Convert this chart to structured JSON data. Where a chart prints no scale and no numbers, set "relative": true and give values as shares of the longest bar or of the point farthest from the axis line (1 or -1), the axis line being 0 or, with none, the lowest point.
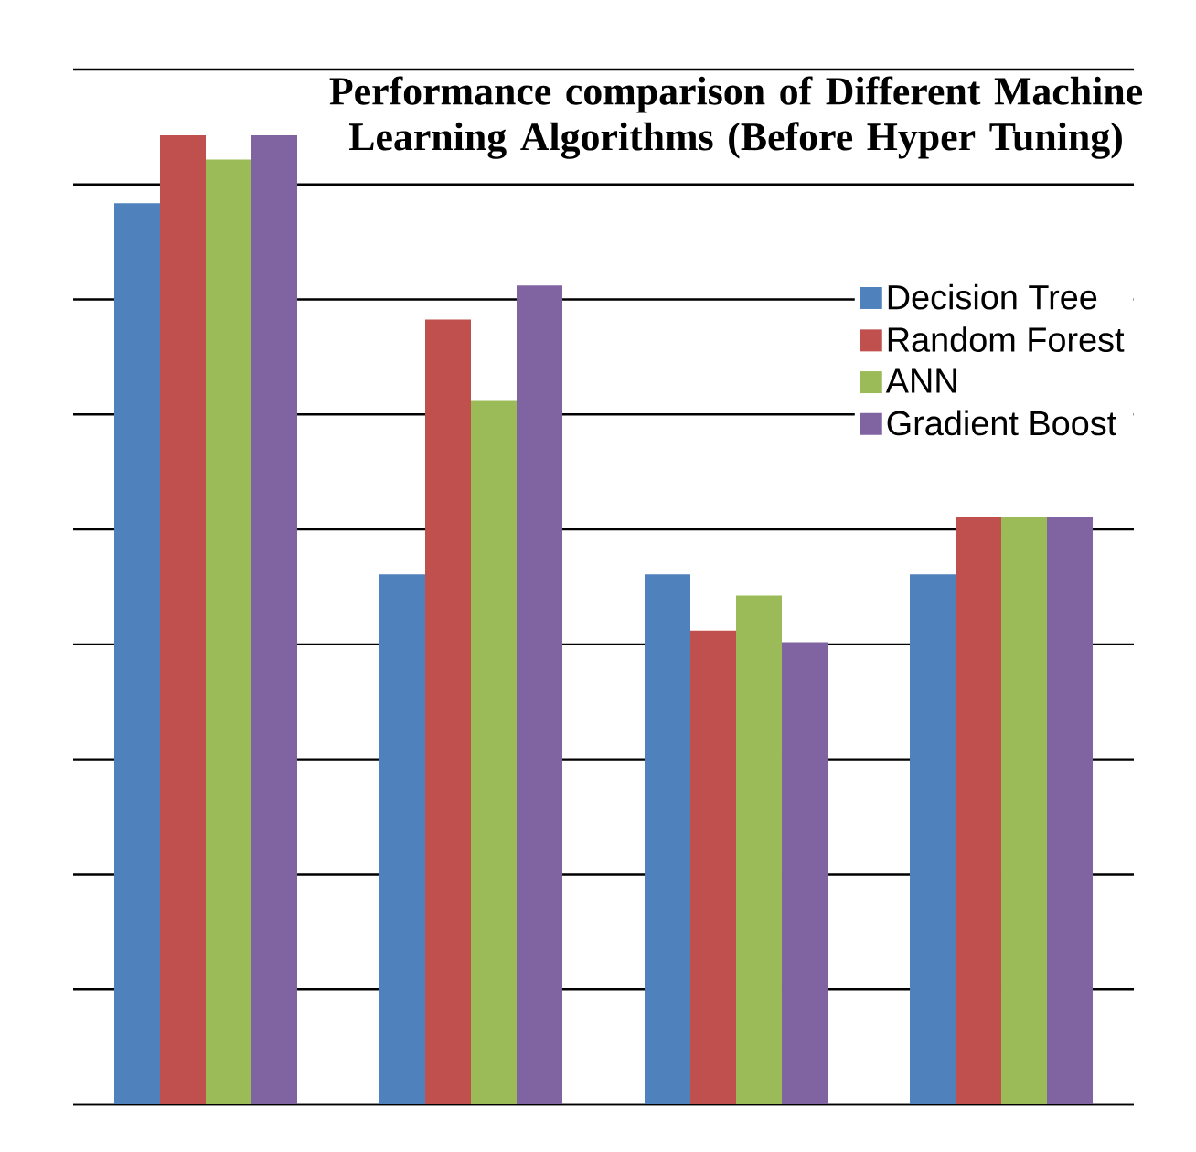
{
  "chart_data": {
    "type": "bar",
    "title": "Performance comparison of Different Machine Learning Algorithms (Before Hyper Tuning)",
    "relative": true,
    "categories": [
      null,
      null,
      null,
      null
    ],
    "grid": "y",
    "legend": "right",
    "series": [
      {
        "name": "Decision Tree",
        "color": "#4f81bd",
        "values": [
          0.93,
          0.547,
          0.547,
          0.547
        ]
      },
      {
        "name": "Random Forest",
        "color": "#c0504d",
        "values": [
          1,
          0.81,
          0.489,
          0.606
        ]
      },
      {
        "name": "ANN",
        "color": "#9bbb59",
        "values": [
          0.975,
          0.726,
          0.525,
          0.606
        ]
      },
      {
        "name": "Gradient Boost",
        "color": "#8064a2",
        "values": [
          1,
          0.845,
          0.477,
          0.606
        ]
      }
    ]
  }
}
